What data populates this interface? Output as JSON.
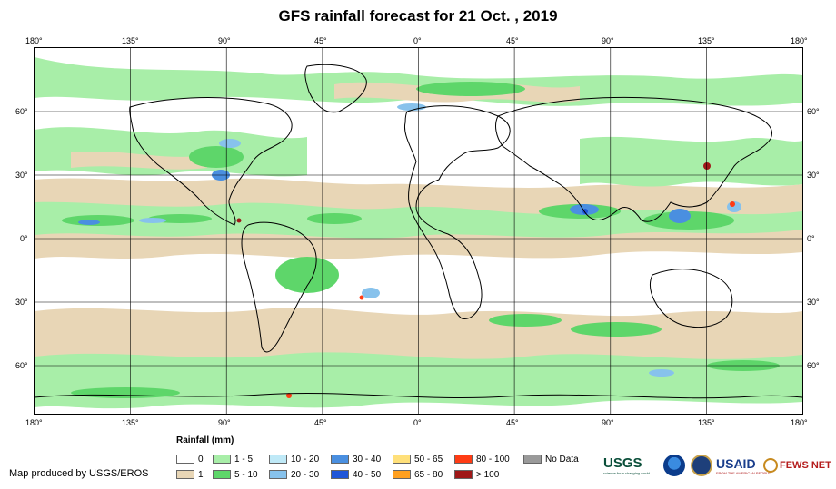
{
  "title": "GFS rainfall forecast for 21 Oct. , 2019",
  "lon_labels": [
    "180°",
    "135°",
    "90°",
    "45°",
    "0°",
    "45°",
    "90°",
    "135°",
    "180°"
  ],
  "lat_labels": [
    "60°",
    "30°",
    "0°",
    "30°",
    "60°"
  ],
  "legend": {
    "title": "Rainfall (mm)",
    "items": [
      {
        "label": "0",
        "color": "#ffffff"
      },
      {
        "label": "1",
        "color": "#e8d6b6"
      },
      {
        "label": "1 - 5",
        "color": "#a8eea8"
      },
      {
        "label": "5 - 10",
        "color": "#5ed66a"
      },
      {
        "label": "10 - 20",
        "color": "#bfe9f7"
      },
      {
        "label": "20 - 30",
        "color": "#87c2ec"
      },
      {
        "label": "30 - 40",
        "color": "#4a8fe0"
      },
      {
        "label": "40 - 50",
        "color": "#1f55d8"
      },
      {
        "label": "50 - 65",
        "color": "#ffe07a"
      },
      {
        "label": "65 - 80",
        "color": "#ffa020"
      },
      {
        "label": "80 - 100",
        "color": "#ff3c14"
      },
      {
        "label": "> 100",
        "color": "#a01818"
      },
      {
        "label": "No Data",
        "color": "#9a9a9a"
      }
    ]
  },
  "credit": "Map produced by USGS/EROS",
  "logos": {
    "usgs": "USGS",
    "usgs_tagline": "science for a changing world",
    "usaid": "USAID",
    "usaid_tagline": "FROM THE AMERICAN PEOPLE",
    "fews": "FEWS NET"
  },
  "colors": {
    "land_outline": "#000000",
    "grid": "#000000"
  }
}
